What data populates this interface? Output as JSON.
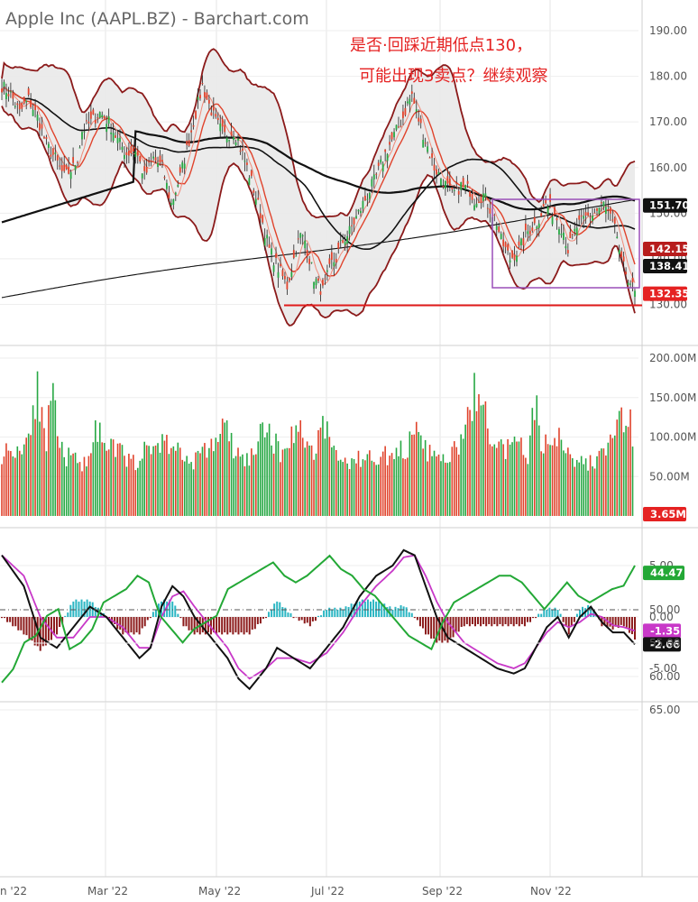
{
  "header": {
    "title": "Apple Inc (AAPL.BZ) - Barchart.com",
    "annotation_line1": "是否·回踩近期低点130，",
    "annotation_line2": "可能出现3卖点？继续观察"
  },
  "colors": {
    "up": "#27a844",
    "down": "#e0432c",
    "band_fill": "#e9e9e9",
    "band_line": "#8b1a1a",
    "signal": "#c838c8",
    "support": "#e01b1b",
    "box": "#9a4fb8",
    "rsi": "#23a836",
    "hist_pos": "#2bb6c3",
    "hist_neg": "#8b1a1a"
  },
  "chart_data": [
    {
      "name": "price",
      "type": "candlestick",
      "y_ticks": [
        "190.00",
        "180.00",
        "170.00",
        "160.00",
        "150.00",
        "140.00",
        "130.00"
      ],
      "ylim": [
        128,
        194
      ],
      "close_path": [
        [
          0,
          178
        ],
        [
          4,
          176
        ],
        [
          8,
          172
        ],
        [
          12,
          175
        ],
        [
          16,
          171
        ],
        [
          20,
          165
        ],
        [
          24,
          162
        ],
        [
          28,
          158
        ],
        [
          32,
          160
        ],
        [
          34,
          162
        ],
        [
          36,
          168
        ],
        [
          40,
          170
        ],
        [
          44,
          172
        ],
        [
          48,
          170
        ],
        [
          52,
          166
        ],
        [
          56,
          163
        ],
        [
          60,
          164
        ],
        [
          62,
          161
        ],
        [
          64,
          158
        ],
        [
          68,
          162
        ],
        [
          72,
          160
        ],
        [
          74,
          156
        ],
        [
          76,
          152
        ],
        [
          80,
          158
        ],
        [
          84,
          166
        ],
        [
          88,
          174
        ],
        [
          90,
          178
        ],
        [
          92,
          175
        ],
        [
          96,
          170
        ],
        [
          100,
          167
        ],
        [
          104,
          168
        ],
        [
          106,
          166
        ],
        [
          108,
          163
        ],
        [
          110,
          160
        ],
        [
          112,
          157
        ],
        [
          116,
          150
        ],
        [
          120,
          142
        ],
        [
          124,
          138
        ],
        [
          128,
          134
        ],
        [
          130,
          138
        ],
        [
          132,
          142
        ],
        [
          134,
          145
        ],
        [
          136,
          144
        ],
        [
          138,
          140
        ],
        [
          140,
          136
        ],
        [
          142,
          134
        ],
        [
          144,
          133
        ],
        [
          146,
          136
        ],
        [
          148,
          139
        ],
        [
          150,
          140
        ],
        [
          152,
          143
        ],
        [
          156,
          146
        ],
        [
          160,
          150
        ],
        [
          164,
          154
        ],
        [
          168,
          158
        ],
        [
          172,
          163
        ],
        [
          176,
          167
        ],
        [
          180,
          171
        ],
        [
          182,
          174
        ],
        [
          184,
          176
        ],
        [
          186,
          172
        ],
        [
          190,
          166
        ],
        [
          194,
          160
        ],
        [
          198,
          157
        ],
        [
          202,
          154
        ],
        [
          206,
          156
        ],
        [
          210,
          155
        ],
        [
          212,
          153
        ],
        [
          216,
          154
        ],
        [
          218,
          152
        ],
        [
          222,
          148
        ],
        [
          224,
          144
        ],
        [
          228,
          140
        ],
        [
          232,
          142
        ],
        [
          236,
          146
        ],
        [
          240,
          148
        ],
        [
          244,
          152
        ],
        [
          248,
          150
        ],
        [
          252,
          146
        ],
        [
          254,
          142
        ],
        [
          258,
          147
        ],
        [
          262,
          149
        ],
        [
          266,
          150
        ],
        [
          270,
          152
        ],
        [
          272,
          150
        ],
        [
          276,
          145
        ],
        [
          278,
          139
        ],
        [
          280,
          137
        ],
        [
          282,
          135
        ],
        [
          284,
          132.35
        ]
      ],
      "last_close": 132.35,
      "price_labels": [
        {
          "value": 151.7,
          "text": "151.70",
          "bg": "#111111",
          "fg": "#ffffff"
        },
        {
          "value": 142.15,
          "text": "142.15",
          "bg": "#b71c1c",
          "fg": "#ffffff"
        },
        {
          "value": 138.41,
          "text": "138.41",
          "bg": "#111111",
          "fg": "#ffffff"
        },
        {
          "value": 132.35,
          "text": "132.35",
          "bg": "#e52222",
          "fg": "#ffffff"
        }
      ],
      "support_level": 130
    },
    {
      "name": "volume",
      "type": "bar",
      "y_ticks": [
        "200.00M",
        "150.00M",
        "100.00M",
        "50.00M"
      ],
      "ylim": [
        0,
        200
      ],
      "values_profile": [
        [
          0,
          82
        ],
        [
          10,
          90
        ],
        [
          16,
          165
        ],
        [
          20,
          78
        ],
        [
          22,
          170
        ],
        [
          26,
          85
        ],
        [
          32,
          72
        ],
        [
          38,
          68
        ],
        [
          42,
          122
        ],
        [
          46,
          84
        ],
        [
          52,
          88
        ],
        [
          58,
          68
        ],
        [
          64,
          82
        ],
        [
          70,
          95
        ],
        [
          74,
          96
        ],
        [
          78,
          88
        ],
        [
          84,
          70
        ],
        [
          90,
          80
        ],
        [
          96,
          98
        ],
        [
          100,
          118
        ],
        [
          104,
          86
        ],
        [
          108,
          72
        ],
        [
          112,
          78
        ],
        [
          116,
          102
        ],
        [
          120,
          112
        ],
        [
          124,
          84
        ],
        [
          128,
          88
        ],
        [
          132,
          122
        ],
        [
          136,
          96
        ],
        [
          140,
          84
        ],
        [
          144,
          125
        ],
        [
          148,
          92
        ],
        [
          152,
          70
        ],
        [
          158,
          72
        ],
        [
          164,
          75
        ],
        [
          170,
          80
        ],
        [
          176,
          76
        ],
        [
          182,
          92
        ],
        [
          186,
          104
        ],
        [
          190,
          86
        ],
        [
          196,
          72
        ],
        [
          202,
          78
        ],
        [
          208,
          108
        ],
        [
          212,
          162
        ],
        [
          216,
          138
        ],
        [
          220,
          96
        ],
        [
          224,
          88
        ],
        [
          228,
          86
        ],
        [
          232,
          92
        ],
        [
          236,
          80
        ],
        [
          240,
          165
        ],
        [
          242,
          86
        ],
        [
          246,
          96
        ],
        [
          250,
          104
        ],
        [
          254,
          88
        ],
        [
          258,
          72
        ],
        [
          262,
          66
        ],
        [
          266,
          72
        ],
        [
          270,
          82
        ],
        [
          274,
          98
        ],
        [
          276,
          136
        ],
        [
          278,
          122
        ],
        [
          280,
          102
        ],
        [
          282,
          158
        ],
        [
          284,
          3.65
        ]
      ],
      "last_value_label": "3.65M"
    },
    {
      "name": "macd",
      "type": "line+histogram",
      "y_ticks": [
        "5.00",
        "0.00",
        "-5.00"
      ],
      "ylim": [
        -7.5,
        8.5
      ],
      "macd": [
        [
          0,
          6
        ],
        [
          8,
          3
        ],
        [
          14,
          -2
        ],
        [
          20,
          -3
        ],
        [
          26,
          -1
        ],
        [
          32,
          1
        ],
        [
          38,
          0
        ],
        [
          44,
          -2
        ],
        [
          50,
          -4
        ],
        [
          54,
          -3
        ],
        [
          58,
          1
        ],
        [
          62,
          3
        ],
        [
          66,
          2
        ],
        [
          70,
          0
        ],
        [
          76,
          -2
        ],
        [
          82,
          -4
        ],
        [
          86,
          -6
        ],
        [
          90,
          -7
        ],
        [
          96,
          -5
        ],
        [
          100,
          -3
        ],
        [
          106,
          -4
        ],
        [
          112,
          -5
        ],
        [
          118,
          -3
        ],
        [
          124,
          -1
        ],
        [
          130,
          2
        ],
        [
          136,
          4
        ],
        [
          142,
          5
        ],
        [
          146,
          6.5
        ],
        [
          150,
          6
        ],
        [
          154,
          3
        ],
        [
          158,
          0
        ],
        [
          162,
          -2
        ],
        [
          168,
          -3
        ],
        [
          174,
          -4
        ],
        [
          180,
          -5
        ],
        [
          186,
          -5.5
        ],
        [
          190,
          -5
        ],
        [
          194,
          -3
        ],
        [
          198,
          -1
        ],
        [
          202,
          0
        ],
        [
          206,
          -2
        ],
        [
          210,
          0
        ],
        [
          214,
          1
        ],
        [
          218,
          -0.5
        ],
        [
          222,
          -1.5
        ],
        [
          226,
          -1.5
        ],
        [
          230,
          -2.66
        ]
      ],
      "signal": [
        [
          0,
          6
        ],
        [
          8,
          4
        ],
        [
          14,
          0
        ],
        [
          20,
          -2
        ],
        [
          26,
          -2
        ],
        [
          32,
          0
        ],
        [
          38,
          0
        ],
        [
          44,
          -1
        ],
        [
          50,
          -3
        ],
        [
          54,
          -3
        ],
        [
          58,
          0
        ],
        [
          62,
          2
        ],
        [
          66,
          2.5
        ],
        [
          70,
          1
        ],
        [
          76,
          -1
        ],
        [
          82,
          -3
        ],
        [
          86,
          -5
        ],
        [
          90,
          -6
        ],
        [
          96,
          -5
        ],
        [
          100,
          -4
        ],
        [
          106,
          -4
        ],
        [
          112,
          -4.5
        ],
        [
          118,
          -3.5
        ],
        [
          124,
          -1.5
        ],
        [
          130,
          1
        ],
        [
          136,
          3
        ],
        [
          142,
          4.5
        ],
        [
          146,
          5.8
        ],
        [
          150,
          6
        ],
        [
          154,
          4
        ],
        [
          158,
          1.5
        ],
        [
          162,
          -0.5
        ],
        [
          168,
          -2.5
        ],
        [
          174,
          -3.5
        ],
        [
          180,
          -4.5
        ],
        [
          186,
          -5
        ],
        [
          190,
          -4.5
        ],
        [
          194,
          -3
        ],
        [
          198,
          -1.5
        ],
        [
          202,
          -0.5
        ],
        [
          206,
          -1
        ],
        [
          210,
          -0.5
        ],
        [
          214,
          0.3
        ],
        [
          218,
          0
        ],
        [
          222,
          -0.8
        ],
        [
          226,
          -1
        ],
        [
          230,
          -1.35
        ]
      ],
      "labels": [
        {
          "value": -1.35,
          "text": "-1.35",
          "bg": "#c838c8",
          "fg": "#ffffff"
        },
        {
          "value": -2.66,
          "text": "-2.66",
          "bg": "#111111",
          "fg": "#ffffff"
        }
      ]
    },
    {
      "name": "rsi",
      "type": "line",
      "y_ticks": [
        "65.00",
        "60.00",
        "55.00",
        "50.00"
      ],
      "ylim": [
        42,
        67
      ],
      "midline": 50,
      "values": [
        [
          0,
          62
        ],
        [
          4,
          60
        ],
        [
          8,
          56
        ],
        [
          12,
          55
        ],
        [
          16,
          52
        ],
        [
          20,
          51
        ],
        [
          24,
          57
        ],
        [
          28,
          56
        ],
        [
          32,
          54
        ],
        [
          36,
          50
        ],
        [
          40,
          49
        ],
        [
          44,
          48
        ],
        [
          48,
          46
        ],
        [
          52,
          47
        ],
        [
          56,
          52
        ],
        [
          60,
          54
        ],
        [
          64,
          56
        ],
        [
          68,
          54
        ],
        [
          72,
          53
        ],
        [
          76,
          52
        ],
        [
          80,
          48
        ],
        [
          84,
          47
        ],
        [
          88,
          46
        ],
        [
          92,
          45
        ],
        [
          96,
          44
        ],
        [
          100,
          46
        ],
        [
          104,
          47
        ],
        [
          108,
          46
        ],
        [
          112,
          44.5
        ],
        [
          116,
          43
        ],
        [
          120,
          45
        ],
        [
          124,
          46
        ],
        [
          128,
          48
        ],
        [
          132,
          49
        ],
        [
          136,
          51
        ],
        [
          140,
          53
        ],
        [
          144,
          55
        ],
        [
          148,
          56
        ],
        [
          152,
          57
        ],
        [
          156,
          53
        ],
        [
          160,
          50
        ],
        [
          164,
          49
        ],
        [
          168,
          48
        ],
        [
          172,
          47
        ],
        [
          176,
          46
        ],
        [
          180,
          46
        ],
        [
          184,
          47
        ],
        [
          188,
          49
        ],
        [
          192,
          51
        ],
        [
          196,
          49
        ],
        [
          200,
          47
        ],
        [
          204,
          49
        ],
        [
          208,
          50
        ],
        [
          212,
          49
        ],
        [
          216,
          48
        ],
        [
          220,
          47.5
        ],
        [
          224,
          44.47
        ]
      ],
      "last_value_label": "44.47"
    }
  ],
  "x_axis": {
    "labels": [
      "n '22",
      "Mar '22",
      "May '22",
      "Jul '22",
      "Sep '22",
      "Nov '22"
    ]
  }
}
